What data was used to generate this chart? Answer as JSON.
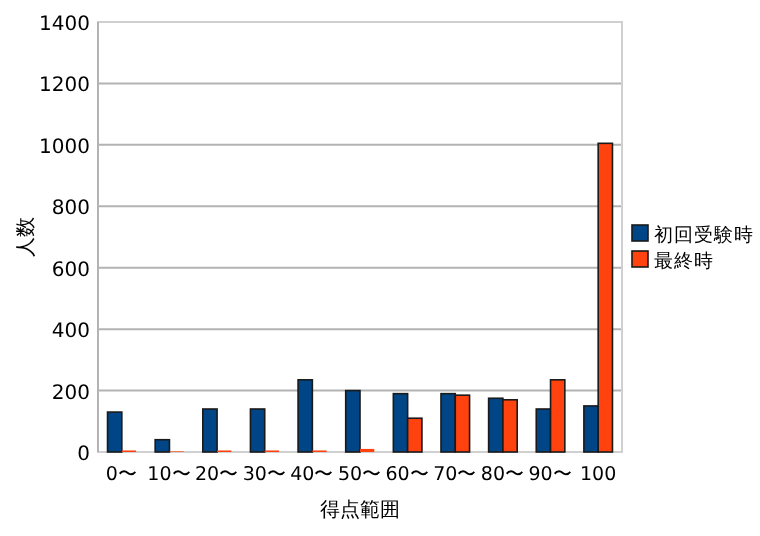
{
  "chart_data": {
    "type": "bar",
    "xlabel": "得点範囲",
    "ylabel": "人数",
    "categories": [
      "0〜",
      "10〜",
      "20〜",
      "30〜",
      "40〜",
      "50〜",
      "60〜",
      "70〜",
      "80〜",
      "90〜",
      "100"
    ],
    "series": [
      {
        "name": "初回受験時",
        "color": "#004586",
        "values": [
          130,
          40,
          140,
          140,
          235,
          200,
          190,
          190,
          175,
          140,
          150
        ]
      },
      {
        "name": "最終時",
        "color": "#ff420e",
        "values": [
          5,
          2,
          5,
          5,
          5,
          10,
          110,
          185,
          170,
          235,
          1005
        ]
      }
    ],
    "ylim": [
      0,
      1400
    ],
    "yticks": [
      0,
      200,
      400,
      600,
      800,
      1000,
      1200,
      1400
    ],
    "grid": "y",
    "legend": "right"
  }
}
